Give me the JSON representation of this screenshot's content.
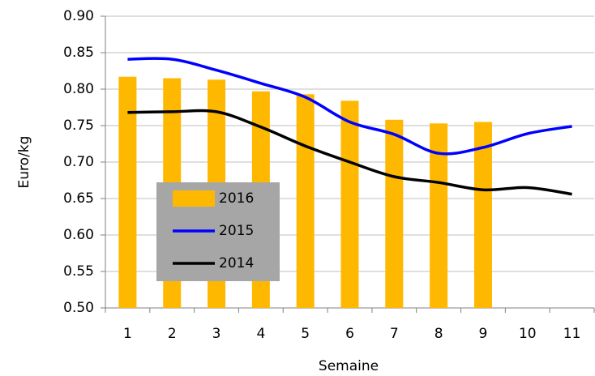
{
  "chart_data": {
    "type": "bar",
    "x_label": "Semaine",
    "y_label": "Euro/kg",
    "categories": [
      "1",
      "2",
      "3",
      "4",
      "5",
      "6",
      "7",
      "8",
      "9",
      "10",
      "11"
    ],
    "series": [
      {
        "name": "2016",
        "type": "bar",
        "color": "#ffb800",
        "values": [
          0.817,
          0.815,
          0.813,
          0.797,
          0.793,
          0.784,
          0.758,
          0.753,
          0.755,
          null,
          null
        ]
      },
      {
        "name": "2015",
        "type": "line",
        "color": "#0000ff",
        "values": [
          0.841,
          0.841,
          0.826,
          0.808,
          0.789,
          0.755,
          0.738,
          0.712,
          0.72,
          0.739,
          0.749
        ]
      },
      {
        "name": "2014",
        "type": "line",
        "color": "#000000",
        "values": [
          0.768,
          0.769,
          0.769,
          0.748,
          0.722,
          0.7,
          0.68,
          0.672,
          0.662,
          0.665,
          0.656
        ]
      }
    ],
    "ylim": [
      0.5,
      0.9
    ],
    "yticks": [
      {
        "value": 0.5,
        "label": "0.50"
      },
      0.55,
      {
        "value": 0.6,
        "label": "0.60"
      },
      0.65,
      {
        "value": 0.7,
        "label": "0.70"
      },
      0.75,
      {
        "value": 0.8,
        "label": "0.80"
      },
      0.85,
      {
        "value": 0.9,
        "label": "0.90"
      }
    ],
    "grid": true
  }
}
